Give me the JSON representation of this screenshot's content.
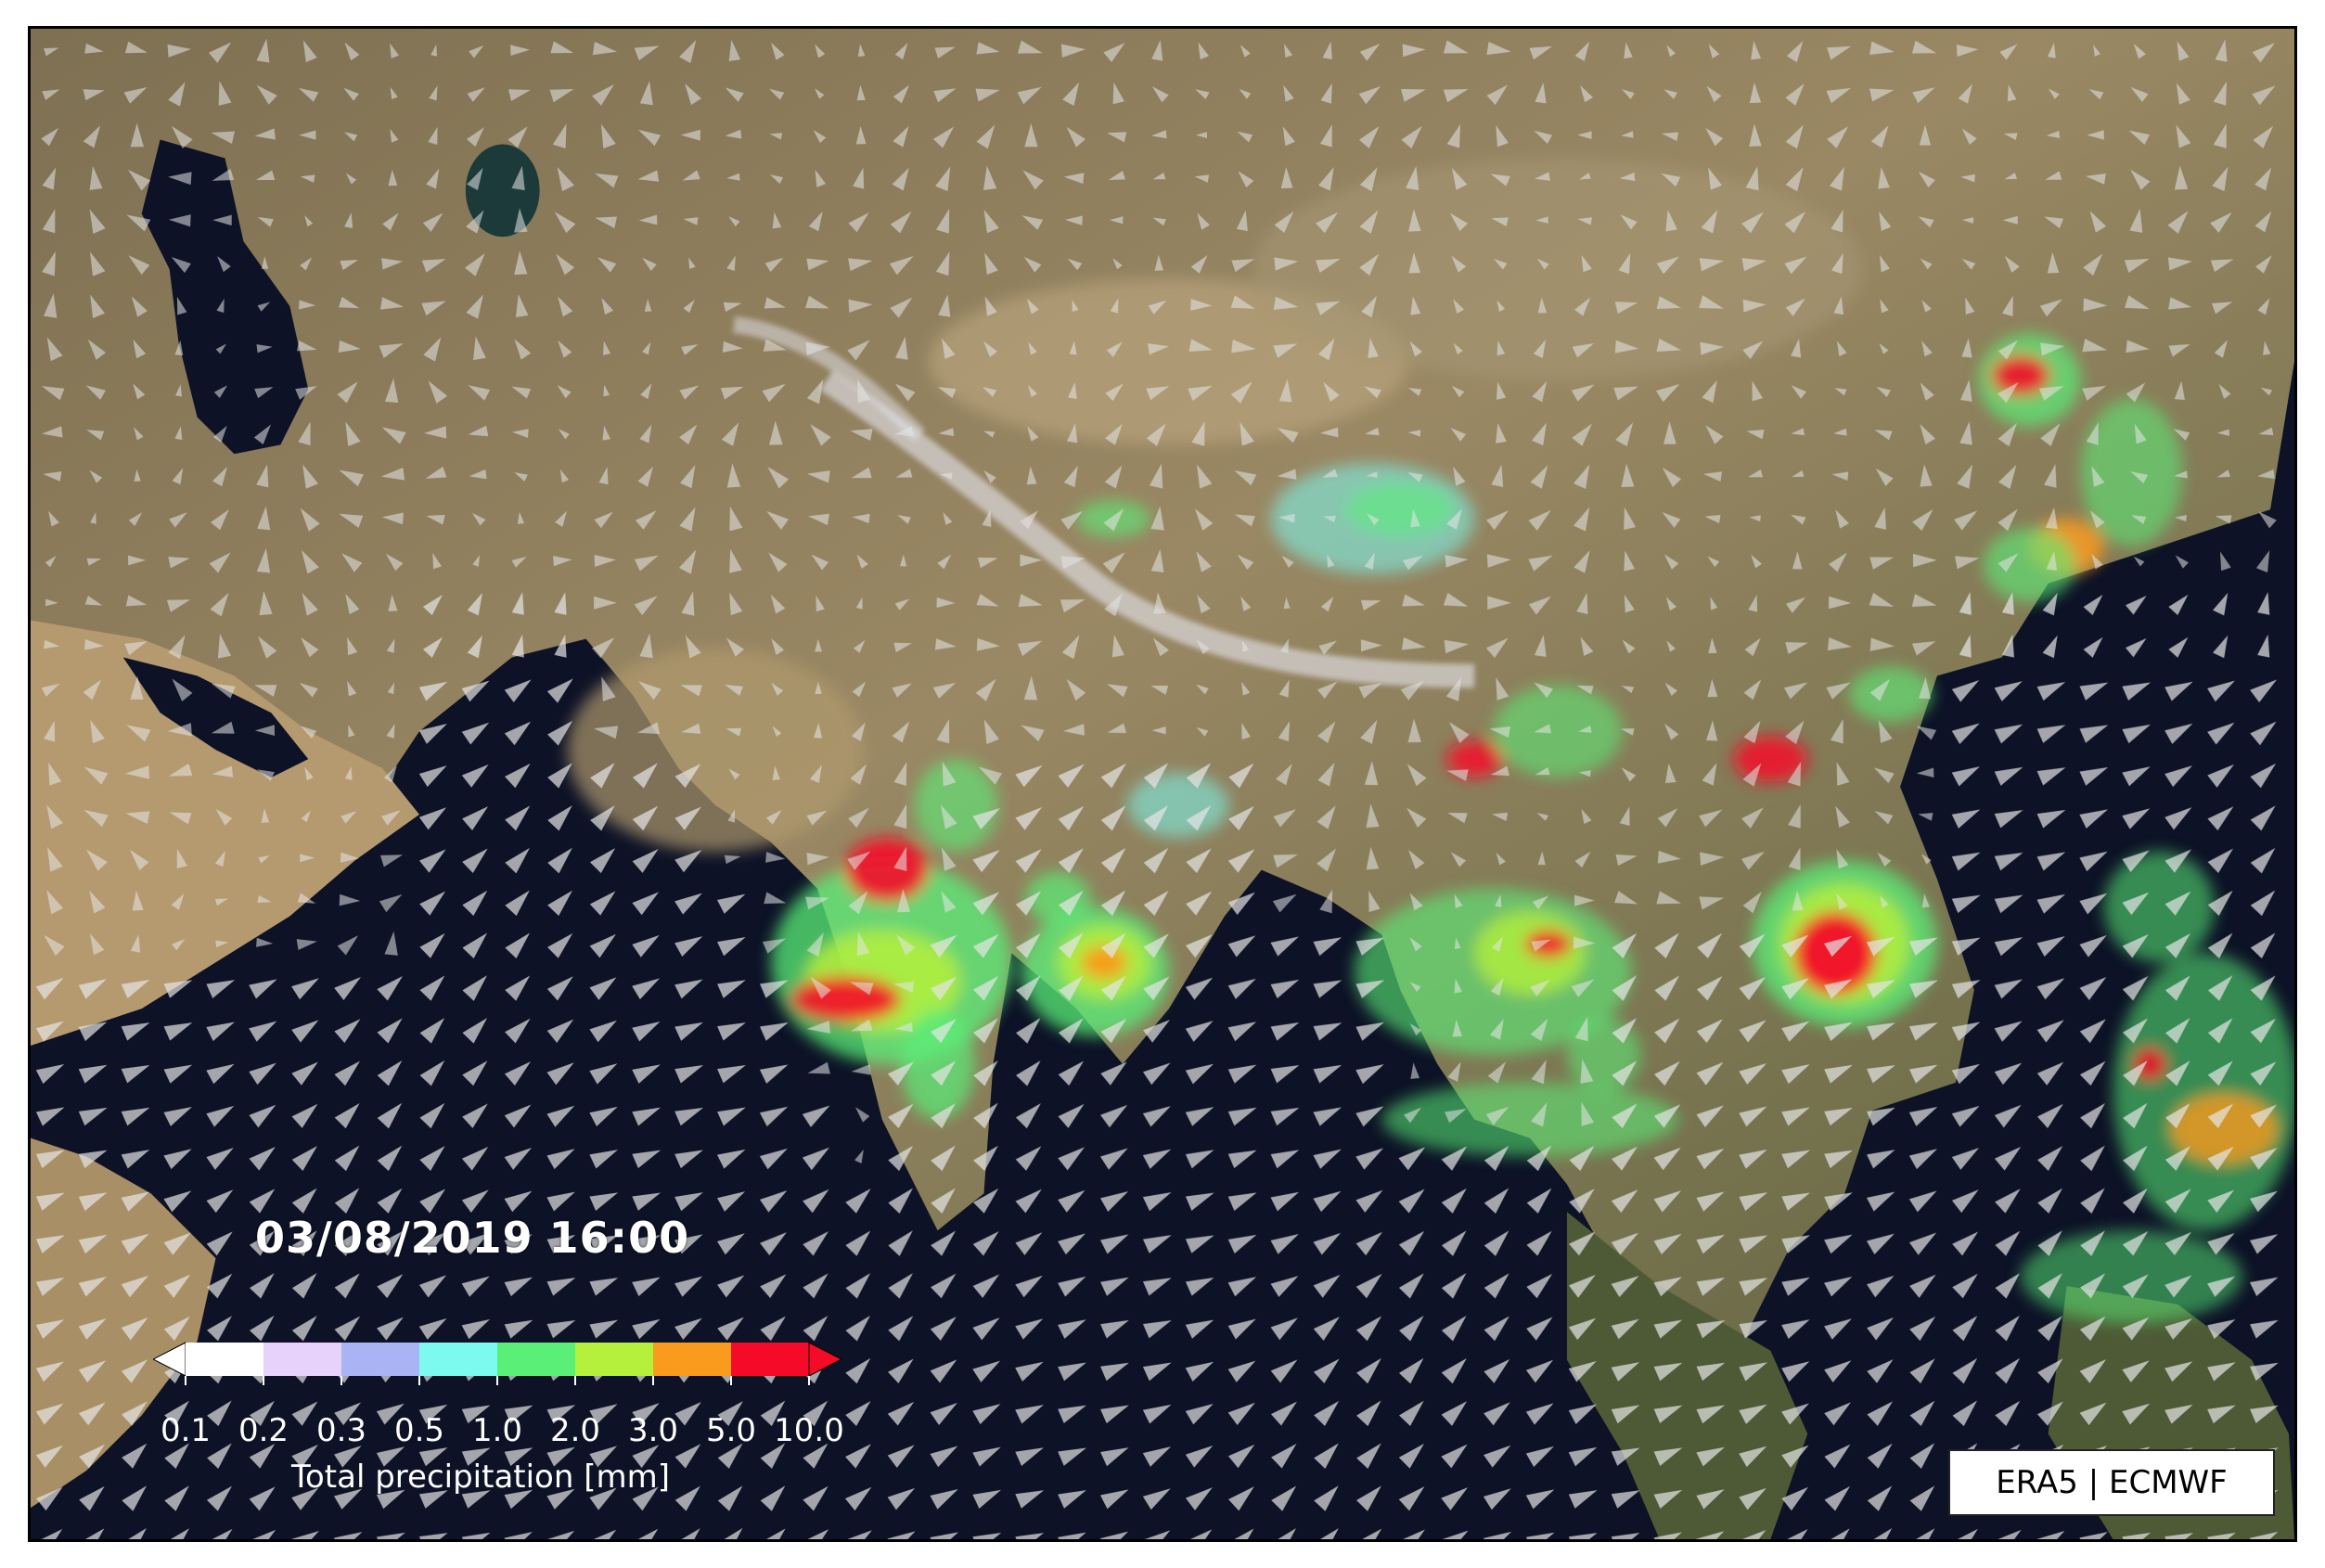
{
  "map": {
    "timestamp": "03/08/2019 16:00",
    "credit": "ERA5 | ECMWF",
    "colorbar": {
      "title": "Total precipitation [mm]",
      "ticks": [
        "0.1",
        "0.2",
        "0.3",
        "0.5",
        "1.0",
        "2.0",
        "3.0",
        "5.0",
        "10.0"
      ],
      "colors": [
        "#ffffff",
        "#e6d2fa",
        "#aab4f5",
        "#7cfaf0",
        "#5af078",
        "#b4f03c",
        "#fa9b1e",
        "#f50a28"
      ],
      "extend": "both"
    },
    "colors": {
      "land": "#8c7c5a",
      "ocean": "#0d1226",
      "wind_arrows": "#e6e6e6"
    },
    "icons": [
      "wind-arrow-icon"
    ]
  }
}
